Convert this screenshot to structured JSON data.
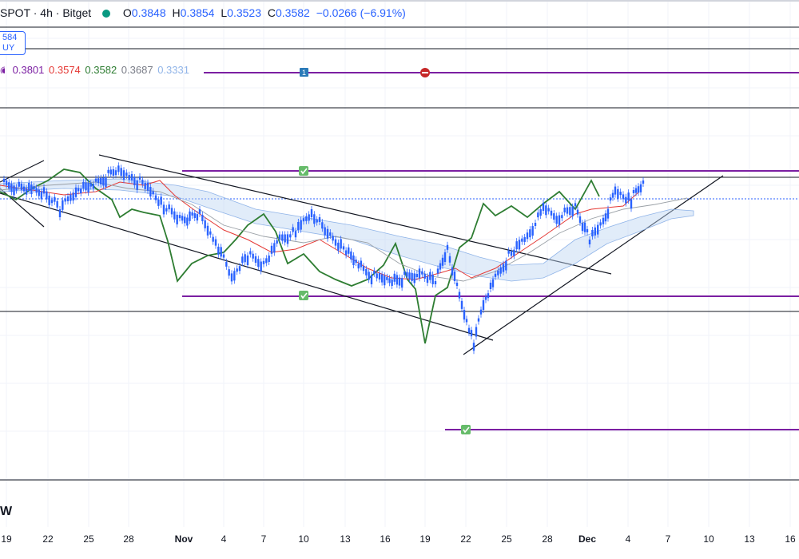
{
  "header": {
    "symbol": "SPOT · 4h · Bitget",
    "open_label": "O",
    "open": "0.3848",
    "high_label": "H",
    "high": "0.3854",
    "low_label": "L",
    "low": "0.3523",
    "close_label": "C",
    "close": "0.3582",
    "change": "−0.0266 (−6.91%)",
    "status_color": "#089981"
  },
  "price_badge": {
    "price": "584",
    "side": "UY"
  },
  "ichimoku_values": [
    {
      "value": "0.3801",
      "color": "#7b1fa2"
    },
    {
      "value": "0.3574",
      "color": "#e53935"
    },
    {
      "value": "0.3582",
      "color": "#2e7d32"
    },
    {
      "value": "0.3687",
      "color": "#787b86"
    },
    {
      "value": "0.3331",
      "color": "#90b4e8"
    }
  ],
  "watermark": "W",
  "chart_data": {
    "type": "candlestick",
    "timeframe": "4h",
    "x_ticks": [
      "19",
      "22",
      "25",
      "28",
      "Nov",
      "4",
      "7",
      "10",
      "13",
      "16",
      "19",
      "22",
      "25",
      "28",
      "Dec",
      "4",
      "7",
      "10",
      "13",
      "16"
    ],
    "annotations": {
      "horizontal_levels_black": [
        "level_1",
        "level_2",
        "level_3",
        "level_4",
        "level_5",
        "level_6"
      ],
      "horizontal_levels_purple": [
        "level_a",
        "level_b",
        "level_c",
        "level_d"
      ],
      "markers": [
        "1",
        "stop",
        "check",
        "check",
        "check"
      ]
    },
    "series_colors": {
      "candles": "#2962ff",
      "lagging_span": "#2e7d32",
      "base_line": "#e53935",
      "cloud": "#bcd4f2"
    }
  }
}
